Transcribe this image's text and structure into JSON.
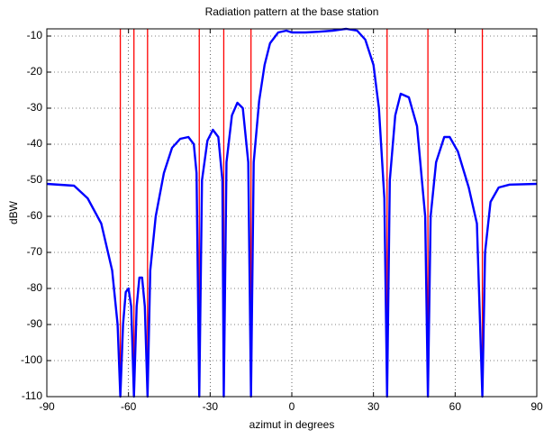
{
  "chart_data": {
    "type": "line",
    "title": "Radiation pattern at the base station",
    "xlabel": "azimut in degrees",
    "ylabel": "dBW",
    "xlim": [
      -90,
      90
    ],
    "xticks": [
      -90,
      -60,
      -30,
      0,
      30,
      60,
      90
    ],
    "ylim": [
      -110,
      -8
    ],
    "yticks": [
      -110,
      -100,
      -90,
      -80,
      -70,
      -60,
      -50,
      -40,
      -30,
      -20,
      -10
    ],
    "grid": true,
    "series": [
      {
        "color": "#0000ff",
        "x": [
          -90,
          -80,
          -75,
          -70,
          -66,
          -64,
          -63,
          -62,
          -61,
          -60,
          -59,
          -58,
          -57,
          -56,
          -55,
          -54,
          -53,
          -52,
          -50,
          -47,
          -44,
          -41,
          -38,
          -36,
          -35,
          -34,
          -33,
          -31,
          -29,
          -27,
          -25.5,
          -25,
          -24,
          -22,
          -20,
          -18,
          -16,
          -15,
          -14,
          -12,
          -10,
          -8,
          -5,
          -2,
          0,
          5,
          10,
          15,
          20,
          24,
          27,
          30,
          32,
          34,
          35,
          36,
          38,
          40,
          43,
          46,
          49,
          50,
          51,
          53,
          56,
          58,
          61,
          65,
          68,
          70,
          71,
          73,
          76,
          80,
          90
        ],
        "values": [
          -51,
          -51.5,
          -55,
          -62,
          -75,
          -90,
          -110,
          -90,
          -81,
          -80,
          -85,
          -110,
          -85,
          -77,
          -77,
          -85,
          -110,
          -75,
          -60,
          -48,
          -41,
          -38.5,
          -38,
          -40,
          -48,
          -110,
          -50,
          -39,
          -36,
          -38,
          -50,
          -110,
          -45,
          -32,
          -28.5,
          -30,
          -45,
          -110,
          -45,
          -28,
          -18,
          -12,
          -9,
          -8.5,
          -9,
          -9,
          -8.8,
          -8.5,
          -8,
          -8.5,
          -11,
          -18,
          -30,
          -55,
          -110,
          -50,
          -32,
          -26,
          -27,
          -35,
          -60,
          -110,
          -60,
          -45,
          -38,
          -38,
          -42,
          -52,
          -62,
          -110,
          -70,
          -56,
          -52,
          -51.2,
          -51
        ]
      }
    ],
    "vlines": {
      "color": "#ff0000",
      "x": [
        -63,
        -58,
        -53,
        -34,
        -25,
        -15,
        35,
        50,
        70
      ]
    }
  }
}
